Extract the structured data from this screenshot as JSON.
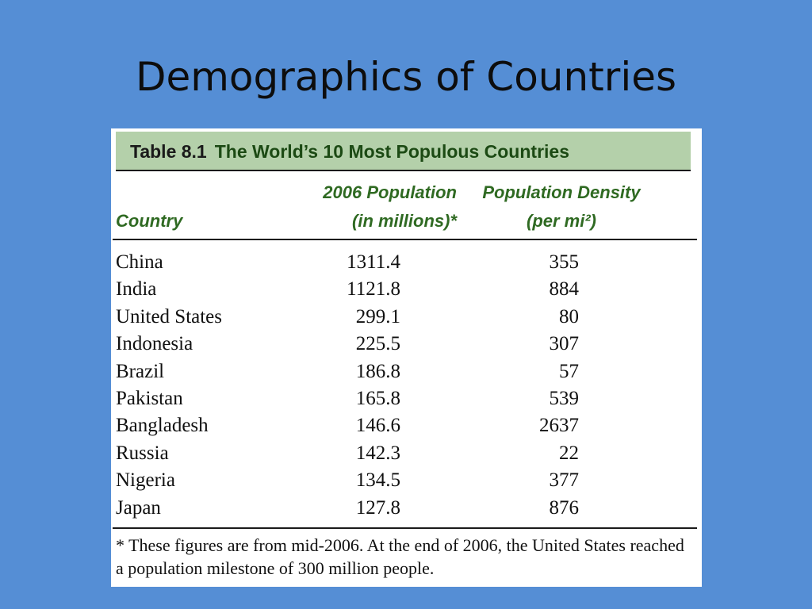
{
  "slide": {
    "title": "Demographics of Countries"
  },
  "table": {
    "caption_number": "Table 8.1",
    "caption_title": "The World’s 10 Most Populous Countries",
    "headers": {
      "country": "Country",
      "population_line1": "2006 Population",
      "population_line2": "(in millions)*",
      "density_line1": "Population Density",
      "density_line2": "(per mi²)"
    },
    "rows": [
      {
        "country": "China",
        "population": "1311.4",
        "density": "355"
      },
      {
        "country": "India",
        "population": "1121.8",
        "density": "884"
      },
      {
        "country": "United States",
        "population": "299.1",
        "density": "80"
      },
      {
        "country": "Indonesia",
        "population": "225.5",
        "density": "307"
      },
      {
        "country": "Brazil",
        "population": "186.8",
        "density": "57"
      },
      {
        "country": "Pakistan",
        "population": "165.8",
        "density": "539"
      },
      {
        "country": "Bangladesh",
        "population": "146.6",
        "density": "2637"
      },
      {
        "country": "Russia",
        "population": "142.3",
        "density": "22"
      },
      {
        "country": "Nigeria",
        "population": "134.5",
        "density": "377"
      },
      {
        "country": "Japan",
        "population": "127.8",
        "density": "876"
      }
    ],
    "footnote": "* These figures are from mid-2006. At the end of 2006, the United States reached a population milestone of 300 million people."
  },
  "colors": {
    "slide_background": "#558ed5",
    "caption_background": "#b4d0aa",
    "caption_text": "#1c4a14",
    "header_text": "#2f6a22",
    "body_text": "#111111"
  }
}
